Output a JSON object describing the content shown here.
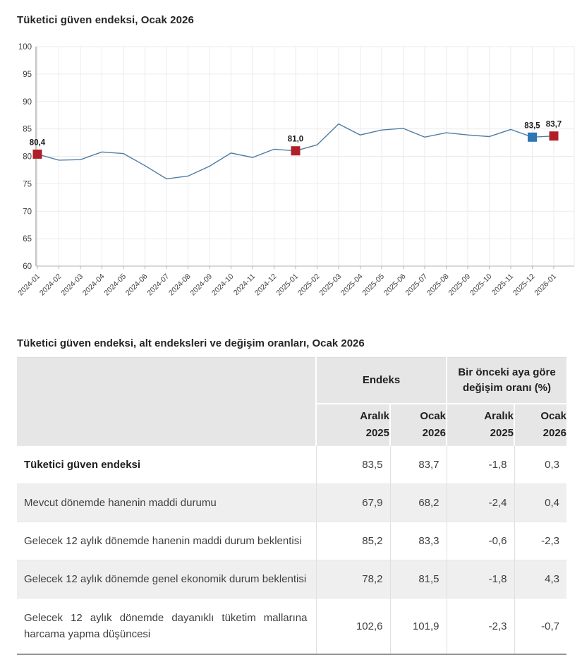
{
  "chart_section": {
    "title": "Tüketici güven endeksi, Ocak 2026"
  },
  "chart_data": {
    "type": "line",
    "title": "Tüketici güven endeksi, Ocak 2026",
    "x": [
      "2024-01",
      "2024-02",
      "2024-03",
      "2024-04",
      "2024-05",
      "2024-06",
      "2024-07",
      "2024-08",
      "2024-09",
      "2024-10",
      "2024-11",
      "2024-12",
      "2025-01",
      "2025-02",
      "2025-03",
      "2025-04",
      "2025-05",
      "2025-06",
      "2025-07",
      "2025-08",
      "2025-09",
      "2025-10",
      "2025-11",
      "2025-12",
      "2026-01"
    ],
    "series": [
      {
        "name": "Tüketici güven endeksi",
        "values": [
          80.4,
          79.3,
          79.4,
          80.8,
          80.5,
          78.3,
          75.9,
          76.4,
          78.2,
          80.6,
          79.8,
          81.3,
          81.0,
          82.1,
          85.9,
          83.9,
          84.8,
          85.1,
          83.5,
          84.3,
          83.9,
          83.6,
          84.9,
          83.5,
          83.7
        ]
      }
    ],
    "ylim": [
      60,
      100
    ],
    "ytick_step": 5,
    "grid": true,
    "legend": "none",
    "line_color": "#4e7ca6",
    "highlighted_points": [
      {
        "x": "2024-01",
        "index": 0,
        "value": 80.4,
        "label": "80,4",
        "marker_color": "#b01f28"
      },
      {
        "x": "2025-01",
        "index": 12,
        "value": 81.0,
        "label": "81,0",
        "marker_color": "#b01f28"
      },
      {
        "x": "2025-12",
        "index": 23,
        "value": 83.5,
        "label": "83,5",
        "marker_color": "#2d77b4"
      },
      {
        "x": "2026-01",
        "index": 24,
        "value": 83.7,
        "label": "83,7",
        "marker_color": "#b01f28"
      }
    ]
  },
  "table": {
    "title": "Tüketici güven endeksi, alt endeksleri ve değişim oranları, Ocak 2026",
    "col_groups": [
      {
        "label": "Endeks"
      },
      {
        "label": "Bir önceki aya göre değişim oranı (%)"
      }
    ],
    "sub_headers": [
      {
        "month": "Aralık",
        "year": "2025"
      },
      {
        "month": "Ocak",
        "year": "2026"
      },
      {
        "month": "Aralık",
        "year": "2025"
      },
      {
        "month": "Ocak",
        "year": "2026"
      }
    ],
    "rows": [
      {
        "label": "Tüketici güven endeksi",
        "values": [
          "83,5",
          "83,7",
          "-1,8",
          "0,3"
        ]
      },
      {
        "label": "Mevcut dönemde hanenin maddi durumu",
        "values": [
          "67,9",
          "68,2",
          "-2,4",
          "0,4"
        ]
      },
      {
        "label": "Gelecek 12 aylık dönemde hanenin maddi durum beklentisi",
        "values": [
          "85,2",
          "83,3",
          "-0,6",
          "-2,3"
        ]
      },
      {
        "label": "Gelecek 12 aylık dönemde genel ekonomik durum beklentisi",
        "values": [
          "78,2",
          "81,5",
          "-1,8",
          "4,3"
        ]
      },
      {
        "label": "Gelecek 12 aylık dönemde dayanıklı tüketim mallarına harcama yapma düşüncesi",
        "values": [
          "102,6",
          "101,9",
          "-2,3",
          "-0,7"
        ]
      }
    ]
  }
}
